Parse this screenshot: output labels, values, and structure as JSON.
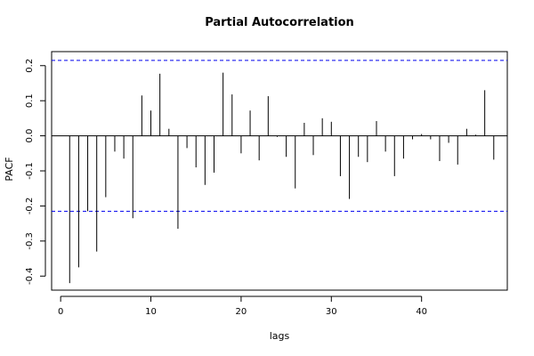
{
  "chart_data": {
    "type": "bar",
    "title": "Partial Autocorrelation",
    "xlabel": "lags",
    "ylabel": "PACF",
    "xlim": [
      -1,
      49.5
    ],
    "ylim": [
      -0.44,
      0.24
    ],
    "x_ticks": [
      0,
      10,
      20,
      30,
      40
    ],
    "y_ticks": [
      -0.4,
      -0.3,
      -0.2,
      -0.1,
      0.0,
      0.1,
      0.2
    ],
    "x_tick_labels": [
      "0",
      "10",
      "20",
      "30",
      "40"
    ],
    "y_tick_labels": [
      "-0.4",
      "-0.3",
      "-0.2",
      "-0.1",
      "0.0",
      "0.1",
      "0.2"
    ],
    "confidence_bounds": [
      0.215,
      -0.215
    ],
    "zero_line": 0,
    "grid": false,
    "series": [
      {
        "lags": [
          1,
          2,
          3,
          4,
          5,
          6,
          7,
          8,
          9,
          10,
          11,
          12,
          13,
          14,
          15,
          16,
          17,
          18,
          19,
          20,
          21,
          22,
          23,
          24,
          25,
          26,
          27,
          28,
          29,
          30,
          31,
          32,
          33,
          34,
          35,
          36,
          37,
          38,
          39,
          40,
          41,
          42,
          43,
          44,
          45,
          46,
          47,
          48
        ],
        "values": [
          -0.42,
          -0.375,
          -0.215,
          -0.33,
          -0.175,
          -0.045,
          -0.065,
          -0.235,
          0.115,
          0.072,
          0.177,
          0.02,
          -0.265,
          -0.035,
          -0.09,
          -0.14,
          -0.105,
          0.18,
          0.118,
          -0.05,
          0.072,
          -0.07,
          0.113,
          -0.003,
          -0.06,
          -0.15,
          0.037,
          -0.055,
          0.05,
          0.04,
          -0.115,
          -0.18,
          -0.06,
          -0.075,
          0.042,
          -0.045,
          -0.115,
          -0.065,
          -0.01,
          0.005,
          -0.01,
          -0.072,
          -0.02,
          -0.082,
          0.02,
          0.003,
          0.13,
          -0.068
        ]
      }
    ],
    "colors": {
      "bars": "#000000",
      "bounds": "#0000ee",
      "axes": "#000000"
    }
  }
}
